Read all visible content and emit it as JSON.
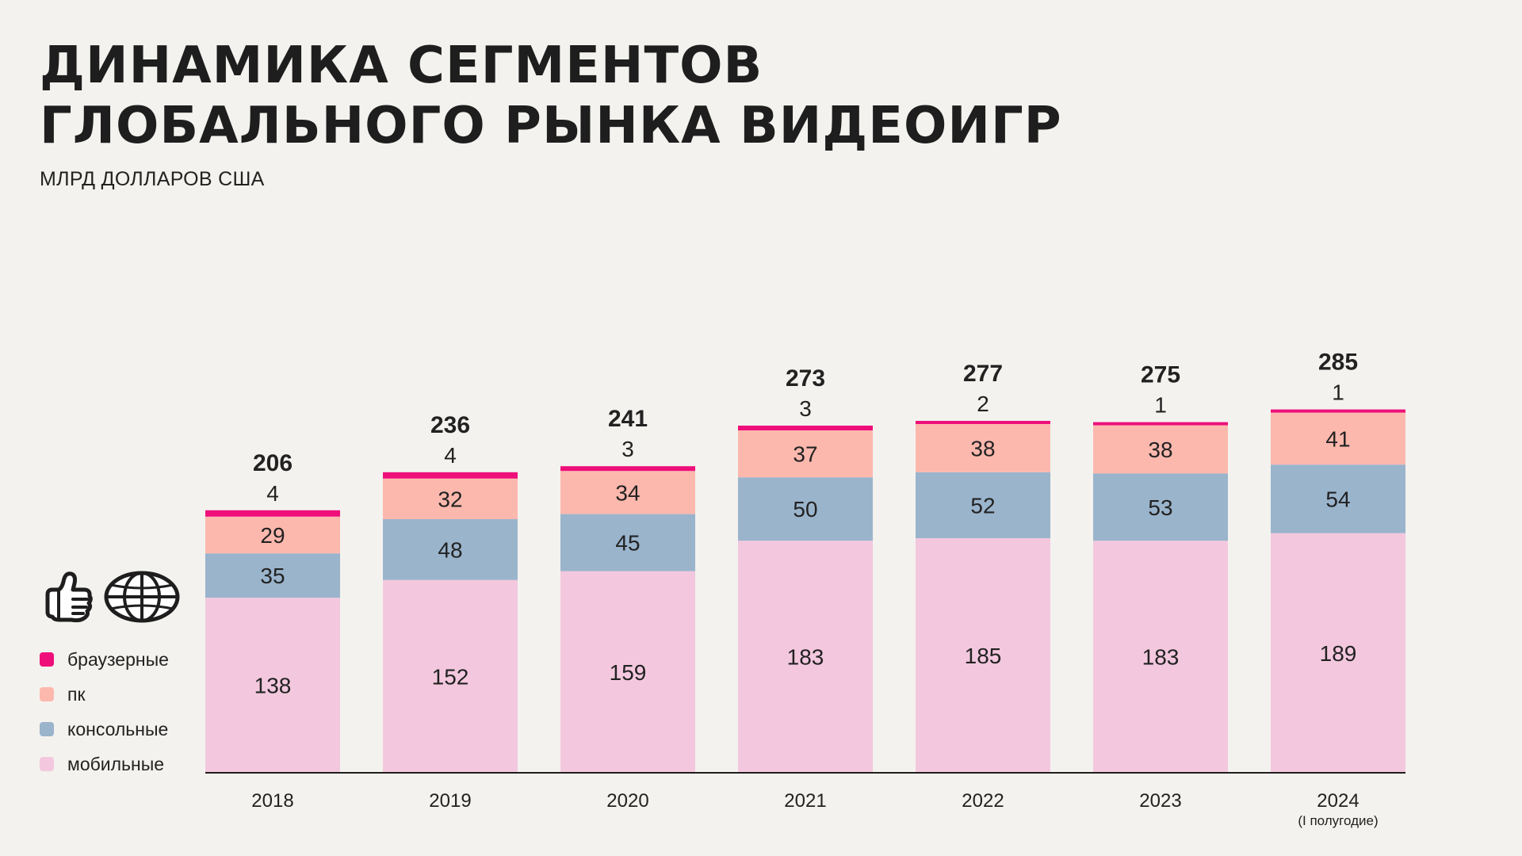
{
  "title": {
    "line1": "ДИНАМИКА СЕГМЕНТОВ",
    "line2": "ГЛОБАЛЬНОГО РЫНКА ВИДЕОИГР"
  },
  "subtitle": "МЛРД ДОЛЛАРОВ США",
  "icons": [
    "thumbs-up-icon",
    "globe-icon"
  ],
  "colors": {
    "browser": "#ee0f7a",
    "pc": "#fdb8ae",
    "console": "#9ab4cc",
    "mobile": "#f3c8de",
    "text": "#222222",
    "background": "#f3f2ee"
  },
  "legend": [
    {
      "key": "browser",
      "label": "браузерные"
    },
    {
      "key": "pc",
      "label": "пк"
    },
    {
      "key": "console",
      "label": "консольные"
    },
    {
      "key": "mobile",
      "label": "мобильные"
    }
  ],
  "chart_data": {
    "type": "bar",
    "stacked": true,
    "categories": [
      "2018",
      "2019",
      "2020",
      "2021",
      "2022",
      "2023",
      "2024"
    ],
    "category_notes": [
      "",
      "",
      "",
      "",
      "",
      "",
      "(I полугодие)"
    ],
    "series": [
      {
        "key": "mobile",
        "name": "мобильные",
        "values": [
          138,
          152,
          159,
          183,
          185,
          183,
          189
        ]
      },
      {
        "key": "console",
        "name": "консольные",
        "values": [
          35,
          48,
          45,
          50,
          52,
          53,
          54
        ]
      },
      {
        "key": "pc",
        "name": "пк",
        "values": [
          29,
          32,
          34,
          37,
          38,
          38,
          41
        ]
      },
      {
        "key": "browser",
        "name": "браузерные",
        "values": [
          4,
          4,
          3,
          3,
          2,
          1,
          1
        ]
      }
    ],
    "totals": [
      206,
      236,
      241,
      273,
      277,
      275,
      285
    ],
    "title": "ДИНАМИКА СЕГМЕНТОВ ГЛОБАЛЬНОГО РЫНКА ВИДЕОИГР",
    "ylabel": "МЛРД ДОЛЛАРОВ США",
    "xlabel": "",
    "ylim": [
      0,
      285
    ],
    "grid": false,
    "legend_position": "left"
  }
}
